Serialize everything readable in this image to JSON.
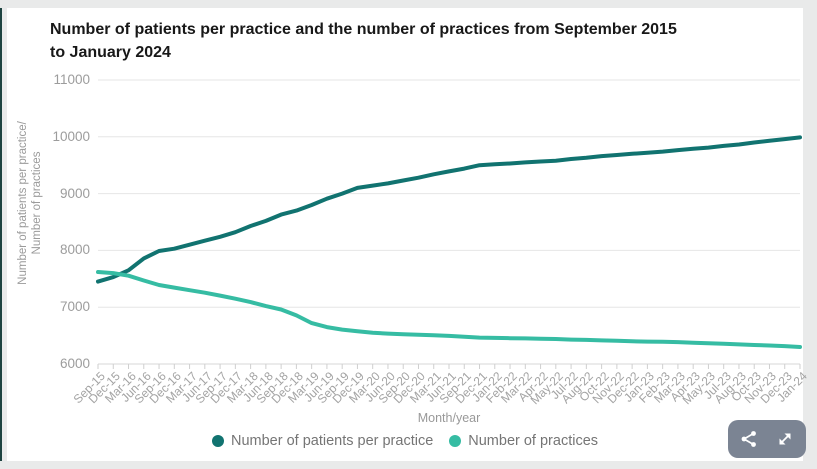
{
  "title": {
    "line1": "Number of patients per practice and the number of practices from September 2015",
    "line2": "to January 2024"
  },
  "chart_data": {
    "type": "line",
    "title": "Number of patients per practice and the number of practices from September 2015 to January 2024",
    "xlabel": "Month/year",
    "ylabel_line1": "Number of patients per practice/",
    "ylabel_line2": "Number of practices",
    "ylim": [
      6000,
      11000
    ],
    "yticks": [
      6000,
      7000,
      8000,
      9000,
      10000,
      11000
    ],
    "grid": "horizontal",
    "legend_position": "bottom-center",
    "categories": [
      "Sep-15",
      "Dec-15",
      "Mar-16",
      "Jun-16",
      "Sep-16",
      "Dec-16",
      "Mar-17",
      "Jun-17",
      "Sep-17",
      "Dec-17",
      "Mar-18",
      "Jun-18",
      "Sep-18",
      "Dec-18",
      "Mar-19",
      "Jun-19",
      "Sep-19",
      "Dec-19",
      "Mar-20",
      "Jun-20",
      "Sep-20",
      "Dec-20",
      "Mar-21",
      "Jun-21",
      "Sep-21",
      "Dec-21",
      "Jan-22",
      "Feb-22",
      "Mar-22",
      "Apr-22",
      "May-22",
      "Jul-22",
      "Aug-22",
      "Oct-22",
      "Nov-22",
      "Dec-22",
      "Jan-23",
      "Feb-23",
      "Mar-23",
      "Apr-23",
      "May-23",
      "Jul-23",
      "Aug-23",
      "Oct-23",
      "Nov-23",
      "Dec-23",
      "Jan-24"
    ],
    "series": [
      {
        "name": "Number of patients per practice",
        "color": "#117370",
        "values": [
          7450,
          7530,
          7650,
          7860,
          7990,
          8030,
          8100,
          8170,
          8240,
          8320,
          8430,
          8520,
          8630,
          8700,
          8800,
          8910,
          9000,
          9100,
          9140,
          9180,
          9230,
          9280,
          9340,
          9390,
          9440,
          9500,
          9515,
          9530,
          9550,
          9565,
          9580,
          9610,
          9630,
          9660,
          9680,
          9700,
          9720,
          9740,
          9765,
          9790,
          9810,
          9840,
          9865,
          9900,
          9930,
          9960,
          9990
        ]
      },
      {
        "name": "Number of practices",
        "color": "#36bca3",
        "values": [
          7620,
          7600,
          7555,
          7470,
          7390,
          7345,
          7300,
          7255,
          7205,
          7150,
          7090,
          7020,
          6960,
          6855,
          6720,
          6650,
          6605,
          6575,
          6550,
          6535,
          6525,
          6515,
          6505,
          6495,
          6480,
          6465,
          6460,
          6455,
          6450,
          6445,
          6440,
          6430,
          6425,
          6415,
          6410,
          6400,
          6395,
          6390,
          6385,
          6375,
          6365,
          6355,
          6345,
          6335,
          6325,
          6315,
          6300
        ]
      }
    ]
  },
  "toolbar": {
    "share_label": "share",
    "expand_label": "expand"
  }
}
